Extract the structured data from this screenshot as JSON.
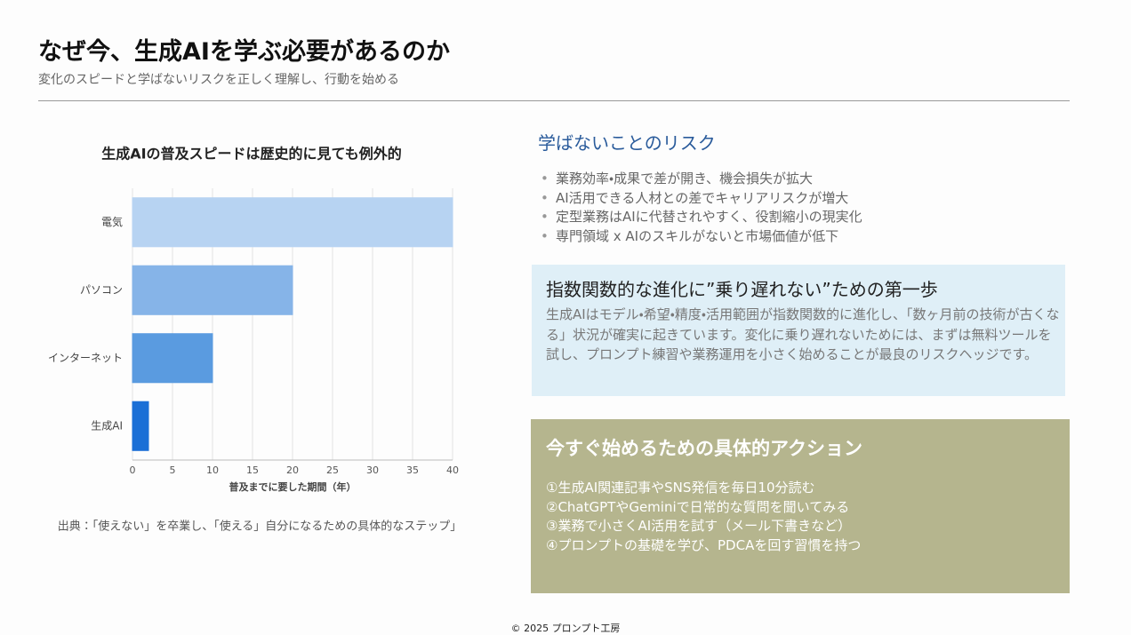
{
  "header": {
    "title": "なぜ今、生成AIを学ぶ必要があるのか",
    "subtitle": "変化のスピードと学ばないリスクを正しく理解し、行動を始める"
  },
  "chart_data": {
    "type": "bar",
    "orientation": "horizontal",
    "title": "生成AIの普及スピードは歴史的に見ても例外的",
    "categories": [
      "電気",
      "パソコン",
      "インターネット",
      "生成AI"
    ],
    "values": [
      40,
      20,
      10,
      2
    ],
    "colors": [
      "#b7d3f2",
      "#86b4e8",
      "#5a9be0",
      "#1a6fd6"
    ],
    "xlim": [
      0,
      40
    ],
    "xticks": [
      0,
      5,
      10,
      15,
      20,
      25,
      30,
      35,
      40
    ],
    "xlabel": "普及までに要した期間（年）",
    "grid": true
  },
  "source": "出典：「使えない」を卒業し、「使える」自分になるための具体的なステップ」",
  "risk": {
    "title": "学ばないことのリスク",
    "items": [
      "業務効率・成果で差が開き、機会損失が拡大",
      "AI活用できる人材との差でキャリアリスクが増大",
      "定型業務はAIに代替されやすく、役割縮小の現実化",
      "専門領域 x AIのスキルがないと市場価値が低下"
    ]
  },
  "first_step": {
    "title": "指数関数的な進化に”乗り遅れない”ための第一歩",
    "body": "生成AIはモデル・希望・精度・活用範囲が指数関数的に進化し、「数ヶ月前の技術が古くなる」状況が確実に起きています。変化に乗り遅れないためには、まずは無料ツールを試し、プロンプト練習や業務運用を小さく始めることが最良のリスクヘッジです。"
  },
  "actions": {
    "title": "今すぐ始めるための具体的アクション",
    "items": [
      "①生成AI関連記事やSNS発信を毎日10分読む",
      "②ChatGPTやGeminiで日常的な質問を聞いてみる",
      "③業務で小さくAI活用を試す（メール下書きなど）",
      "④プロンプトの基礎を学び、PDCAを回す習慣を持つ"
    ]
  },
  "footer": "© 2025 プロンプト工房"
}
